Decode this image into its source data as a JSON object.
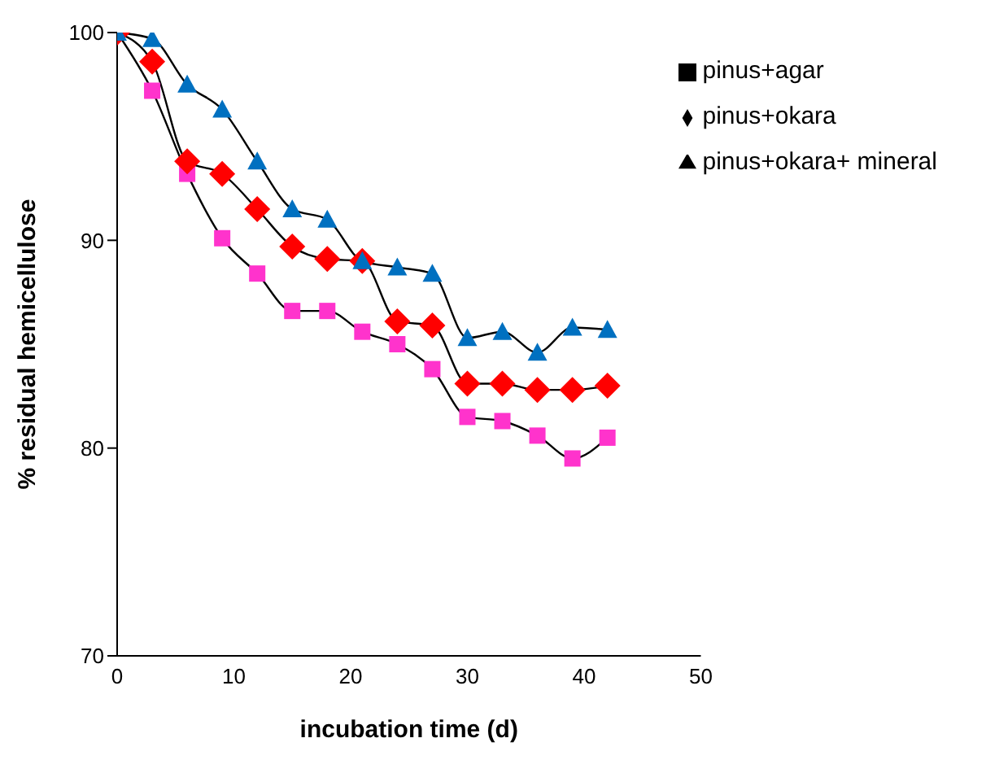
{
  "chart_data": {
    "type": "line",
    "xlabel": "incubation time (d)",
    "ylabel": "% residual hemicellulose",
    "x": [
      0,
      3,
      6,
      9,
      12,
      15,
      18,
      21,
      24,
      27,
      30,
      33,
      36,
      39,
      42
    ],
    "series": [
      {
        "name": "pinus+agar",
        "color": "#ff33cc",
        "marker": "square",
        "values": [
          100,
          97.2,
          93.2,
          90.1,
          88.4,
          86.6,
          86.6,
          85.6,
          85.0,
          83.8,
          81.5,
          81.3,
          80.6,
          79.5,
          80.5
        ]
      },
      {
        "name": "pinus+okara",
        "color": "#ff0000",
        "marker": "diamond",
        "values": [
          100,
          98.6,
          93.8,
          93.2,
          91.5,
          89.7,
          89.1,
          89.0,
          86.1,
          85.9,
          83.1,
          83.1,
          82.8,
          82.8,
          83.0
        ]
      },
      {
        "name": "pinus+okara+ mineral",
        "color": "#0070c0",
        "marker": "triangle",
        "values": [
          100,
          99.7,
          97.5,
          96.3,
          93.8,
          91.5,
          91.0,
          89.0,
          88.7,
          88.4,
          85.3,
          85.6,
          84.6,
          85.8,
          85.7
        ]
      }
    ],
    "xlim": [
      0,
      50
    ],
    "xticks": [
      0,
      10,
      20,
      30,
      40,
      50
    ],
    "ylim": [
      70,
      100
    ],
    "yticks": [
      70,
      80,
      90,
      100
    ],
    "grid": false,
    "legend": "top right"
  }
}
